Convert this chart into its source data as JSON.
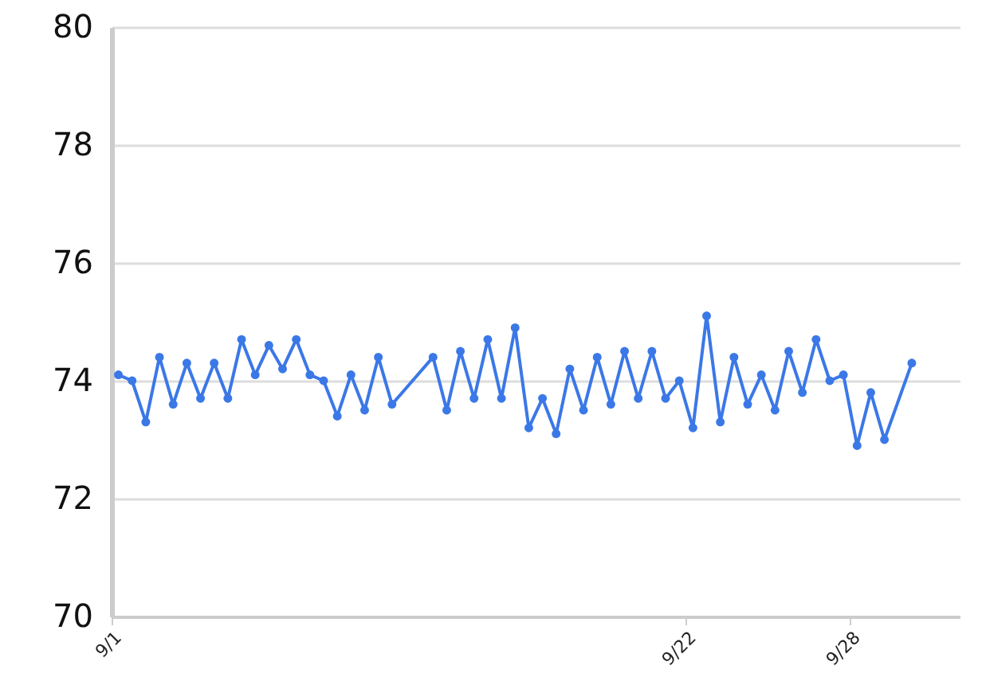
{
  "chart_data": {
    "type": "line",
    "marker": "circle",
    "grid": "y",
    "xlim": [
      "--09-01",
      "--10-02"
    ],
    "xticks": [
      {
        "value": "--09-01",
        "label": "9/1"
      },
      {
        "value": "--09-22",
        "label": "9/22"
      },
      {
        "value": "--09-28",
        "label": "9/28"
      }
    ],
    "ylim": [
      70,
      80
    ],
    "yticks": [
      70,
      72,
      74,
      76,
      78,
      80
    ],
    "series": [
      {
        "color": "#3b78e7",
        "x": [
          "--09-01T06:00",
          "--09-01T18:00",
          "--09-02T06:00",
          "--09-02T18:00",
          "--09-03T06:00",
          "--09-03T18:00",
          "--09-04T06:00",
          "--09-04T18:00",
          "--09-05T06:00",
          "--09-05T18:00",
          "--09-06T06:00",
          "--09-06T18:00",
          "--09-07T06:00",
          "--09-07T18:00",
          "--09-08T06:00",
          "--09-08T18:00",
          "--09-09T06:00",
          "--09-09T18:00",
          "--09-10T06:00",
          "--09-10T18:00",
          "--09-11T06:00",
          "--09-12T18:00",
          "--09-13T06:00",
          "--09-13T18:00",
          "--09-14T06:00",
          "--09-14T18:00",
          "--09-15T06:00",
          "--09-15T18:00",
          "--09-16T06:00",
          "--09-16T18:00",
          "--09-17T06:00",
          "--09-17T18:00",
          "--09-18T06:00",
          "--09-18T18:00",
          "--09-19T06:00",
          "--09-19T18:00",
          "--09-20T06:00",
          "--09-20T18:00",
          "--09-21T06:00",
          "--09-21T18:00",
          "--09-22T06:00",
          "--09-22T18:00",
          "--09-23T06:00",
          "--09-23T18:00",
          "--09-24T06:00",
          "--09-24T18:00",
          "--09-25T06:00",
          "--09-25T18:00",
          "--09-26T06:00",
          "--09-26T18:00",
          "--09-27T06:00",
          "--09-27T18:00",
          "--09-28T06:00",
          "--09-28T18:00",
          "--09-29T06:00",
          "--09-30T06:00"
        ],
        "values": [
          74.1,
          74.0,
          73.3,
          74.4,
          73.6,
          74.3,
          73.7,
          74.3,
          73.7,
          74.7,
          74.1,
          74.6,
          74.2,
          74.7,
          74.1,
          74.0,
          73.4,
          74.1,
          73.5,
          74.4,
          73.6,
          74.4,
          73.5,
          74.5,
          73.7,
          74.7,
          73.7,
          74.9,
          73.2,
          73.7,
          73.1,
          74.2,
          73.5,
          74.4,
          73.6,
          74.5,
          73.7,
          74.5,
          73.7,
          74.0,
          73.2,
          75.1,
          73.3,
          74.4,
          73.6,
          74.1,
          73.5,
          74.5,
          73.8,
          74.7,
          74.0,
          74.1,
          72.9,
          73.8,
          73.0,
          74.3
        ]
      }
    ]
  }
}
